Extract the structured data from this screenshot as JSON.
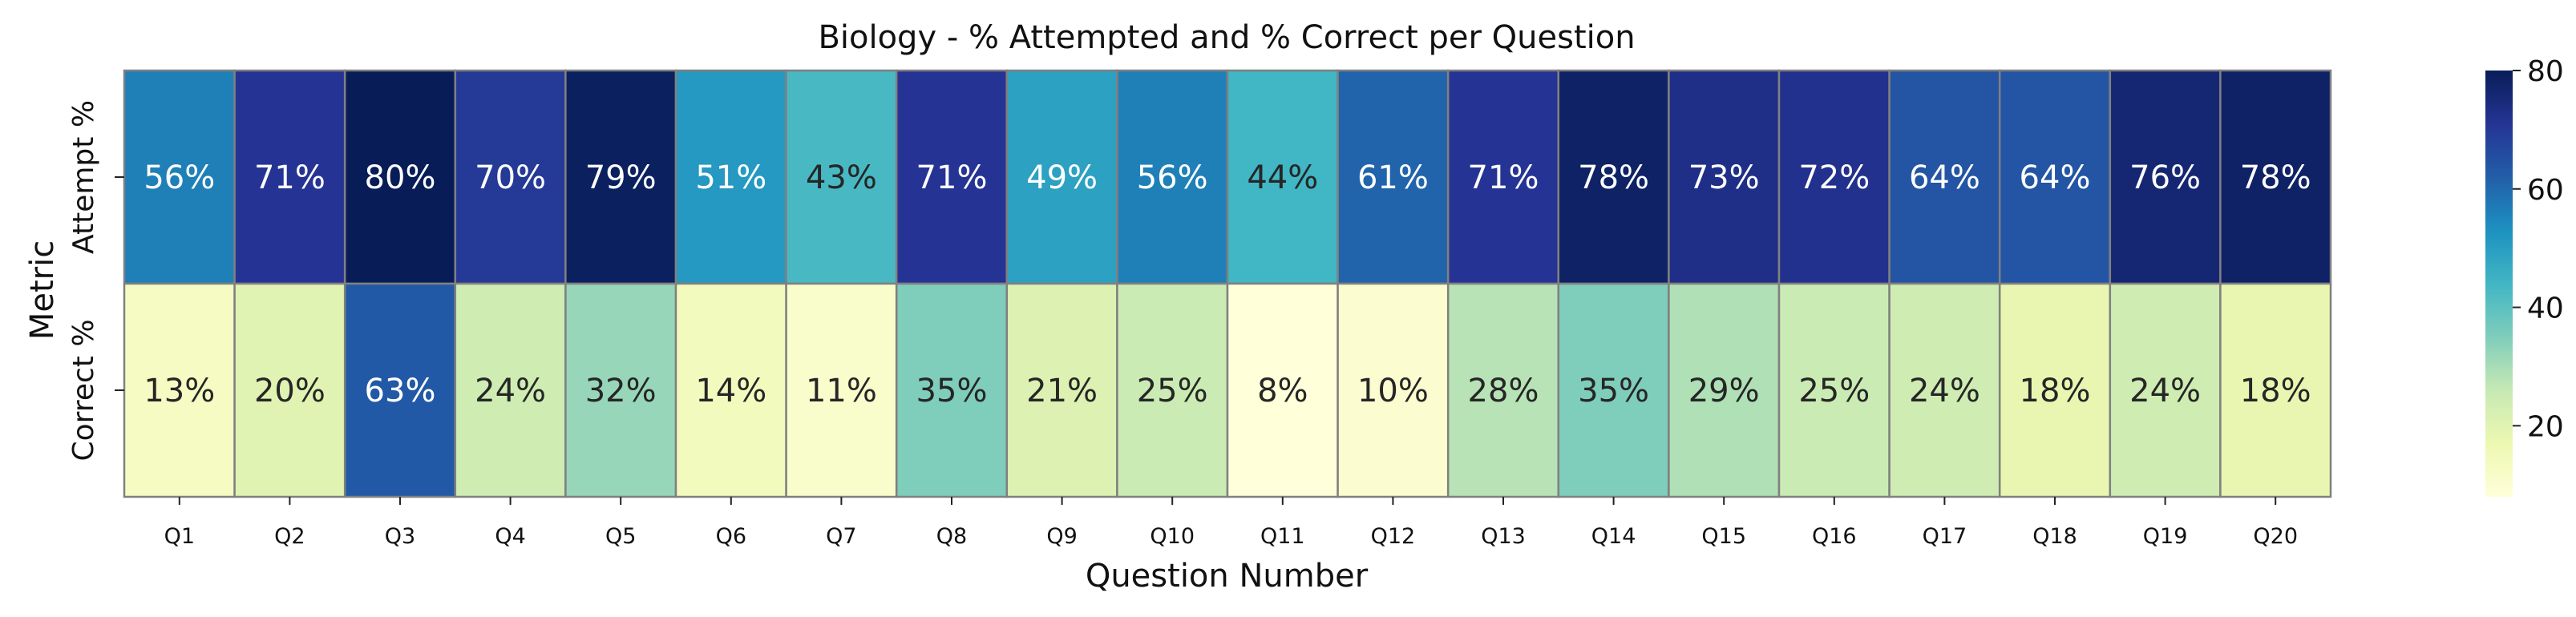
{
  "chart_data": {
    "type": "heatmap",
    "title": "Biology - % Attempted and % Correct per Question",
    "xlabel": "Question Number",
    "ylabel": "Metric",
    "x_categories": [
      "Q1",
      "Q2",
      "Q3",
      "Q4",
      "Q5",
      "Q6",
      "Q7",
      "Q8",
      "Q9",
      "Q10",
      "Q11",
      "Q12",
      "Q13",
      "Q14",
      "Q15",
      "Q16",
      "Q17",
      "Q18",
      "Q19",
      "Q20"
    ],
    "y_categories": [
      "Attempt %",
      "Correct %"
    ],
    "values": [
      [
        56,
        71,
        80,
        70,
        79,
        51,
        43,
        71,
        49,
        56,
        44,
        61,
        71,
        78,
        73,
        72,
        64,
        64,
        76,
        78
      ],
      [
        13,
        20,
        63,
        24,
        32,
        14,
        11,
        35,
        21,
        25,
        8,
        10,
        28,
        35,
        29,
        25,
        24,
        18,
        24,
        18
      ]
    ],
    "value_suffix": "%",
    "colormap": "YlGnBu",
    "colorbar": {
      "min": 8,
      "max": 80,
      "ticks": [
        20,
        40,
        60,
        80
      ]
    },
    "cell_border_color": "#808080"
  }
}
